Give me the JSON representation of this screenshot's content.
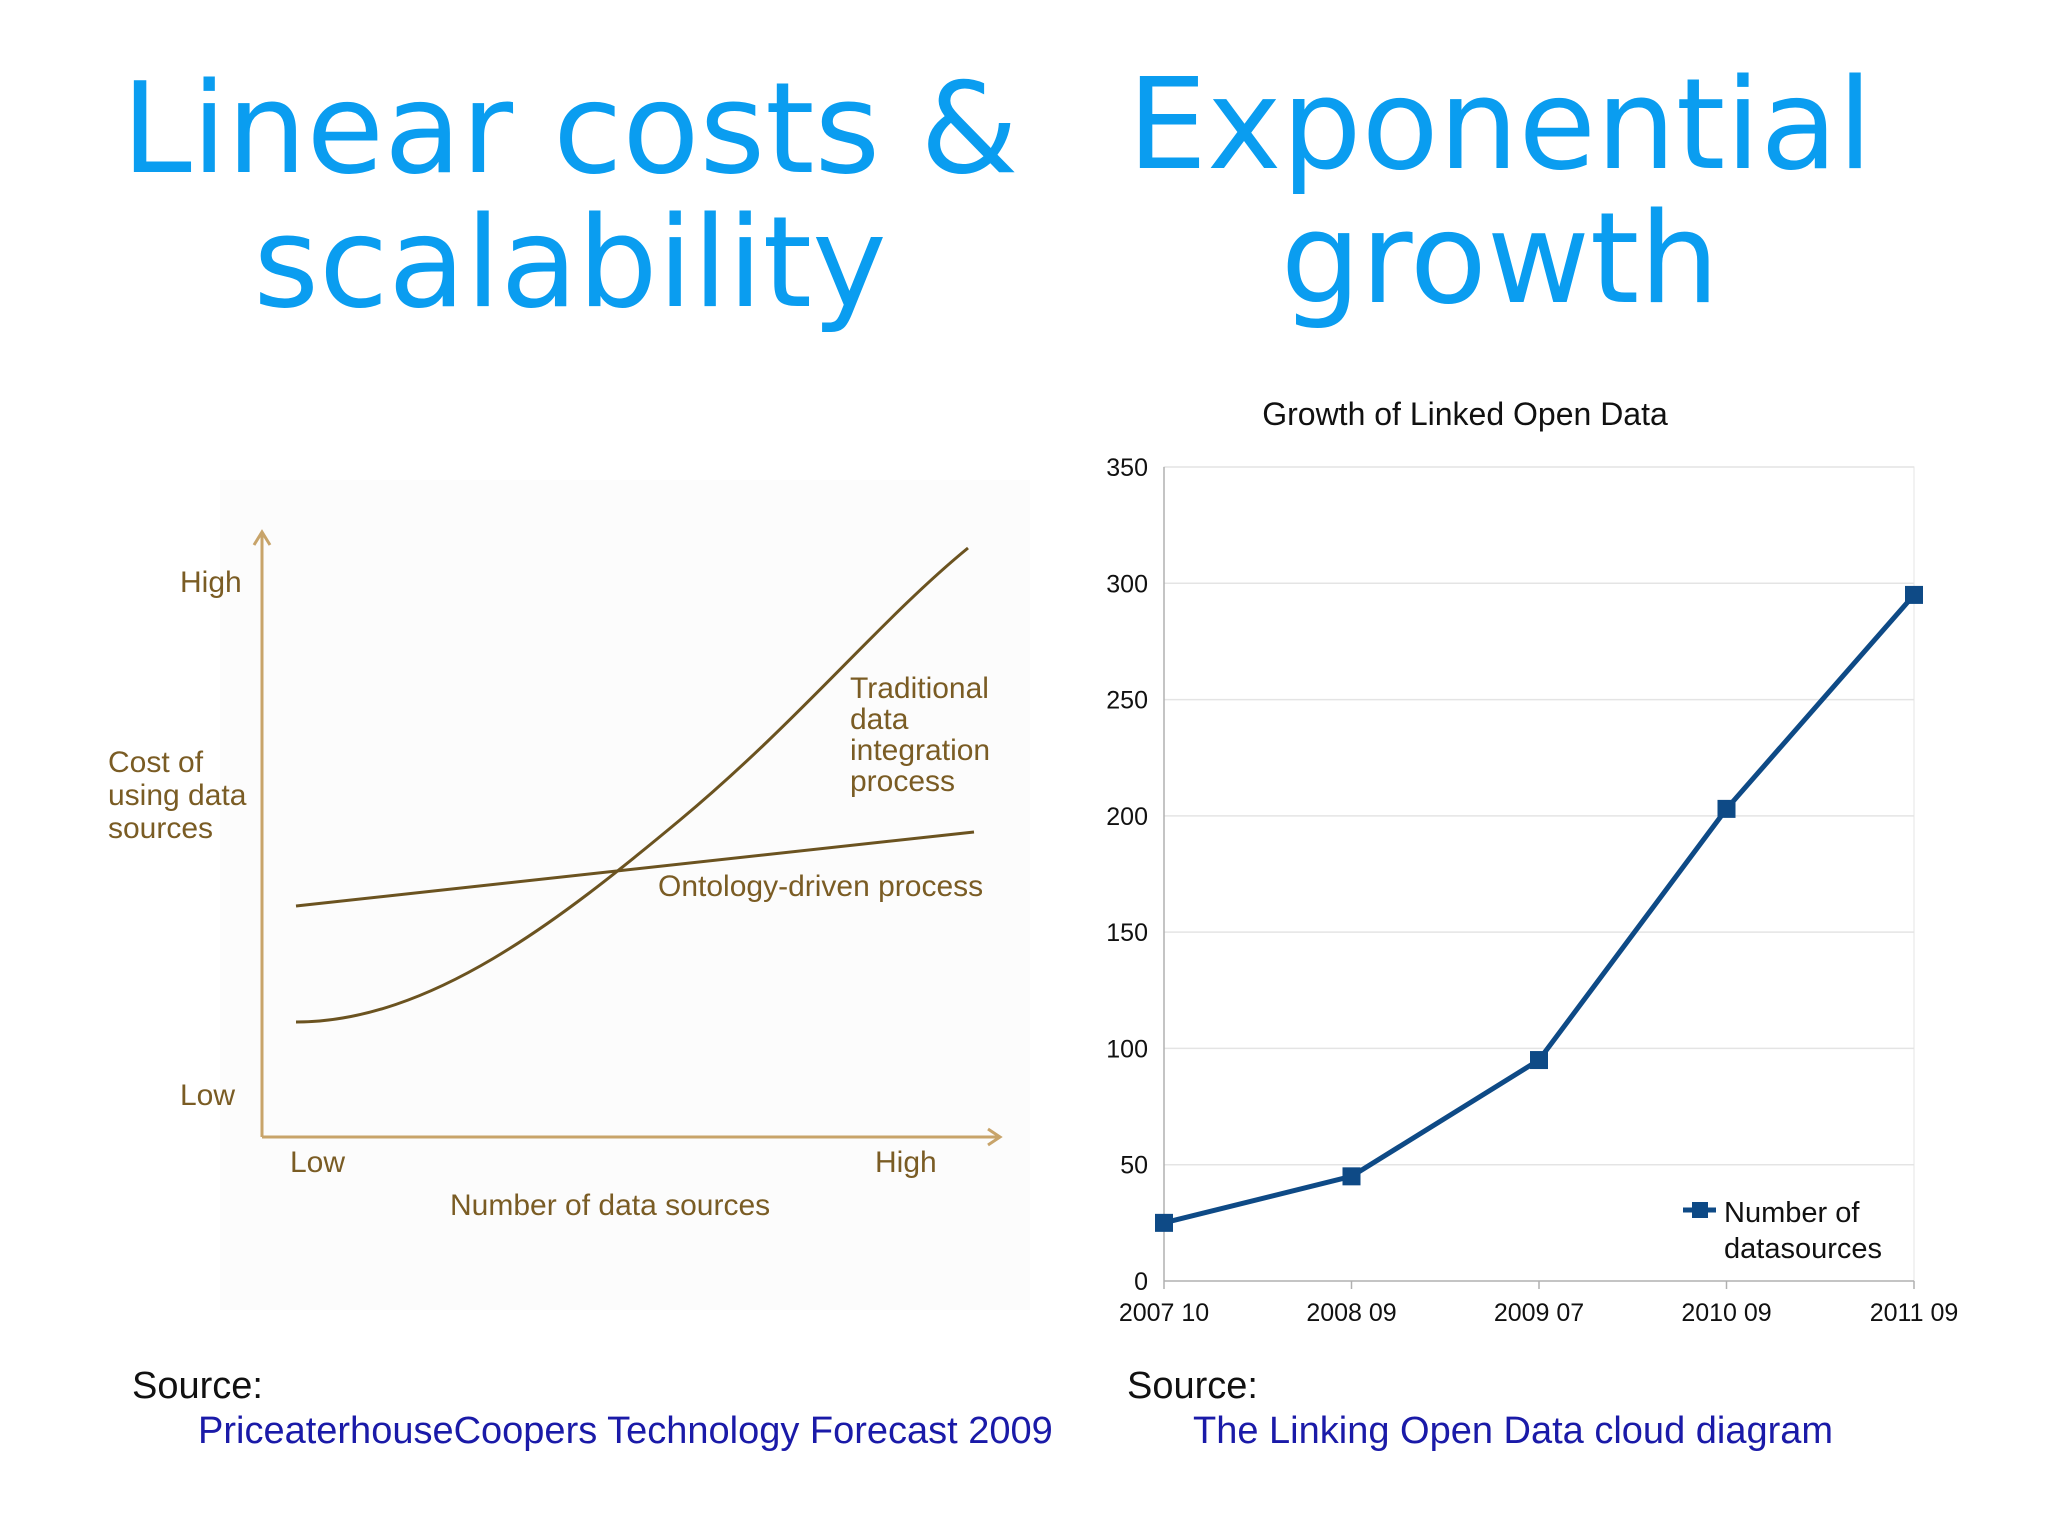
{
  "slide": {
    "left_title": "Linear costs & scalability",
    "right_title": "Exponential growth"
  },
  "left_source": {
    "label": "Source:",
    "link_text": "PriceaterhouseCoopers Technology Forecast 2009"
  },
  "right_source": {
    "label": "Source:",
    "link_text": "The Linking Open Data cloud diagram"
  },
  "colors": {
    "title": "#0a9df0",
    "left_axis": "#c8a46a",
    "left_text": "#7a5c24",
    "left_curve": "#6b5320",
    "right_line": "#0e4a86",
    "link": "#1a1aa8"
  },
  "chart_data": [
    {
      "type": "line",
      "title": "",
      "xlabel": "Number of data sources",
      "ylabel": "Cost of using data sources",
      "x_ticks": [
        "Low",
        "High"
      ],
      "y_ticks": [
        "High",
        "Low"
      ],
      "series": [
        {
          "name": "Traditional data integration process",
          "label": "Traditional data integration process",
          "shape": "convex"
        },
        {
          "name": "Ontology-driven process",
          "label": "Ontology-driven process",
          "shape": "linear"
        }
      ]
    },
    {
      "type": "line",
      "title": "Growth of Linked Open Data",
      "xlabel": "",
      "ylabel": "",
      "categories": [
        "2007 10",
        "2008 09",
        "2009 07",
        "2010 09",
        "2011 09"
      ],
      "series": [
        {
          "name": "Number of datasources",
          "values": [
            25,
            45,
            95,
            203,
            295
          ]
        }
      ],
      "ylim": [
        0,
        350
      ],
      "y_ticks": [
        0,
        50,
        100,
        150,
        200,
        250,
        300,
        350
      ],
      "grid": true,
      "legend": "bottom-right"
    }
  ]
}
